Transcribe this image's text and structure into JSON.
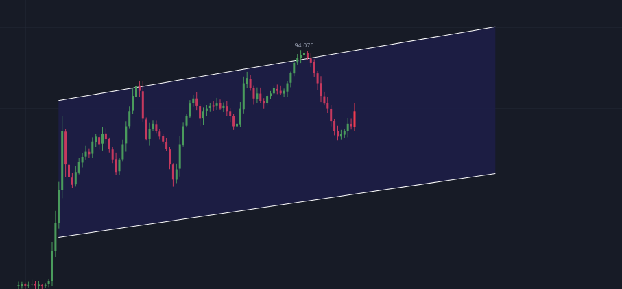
{
  "colors": {
    "background": "#171b26",
    "grid": "#232837",
    "channel_fill": "#1c1d45",
    "channel_line": "#ffffff",
    "up_candle": "#4a9b5c",
    "down_candle": "#c6395e",
    "last_candle": "#f03a4f",
    "label": "#9aa1b2"
  },
  "chart_data": {
    "type": "candlestick",
    "title": "",
    "xlabel": "",
    "ylabel": "",
    "peak_label": "94.076",
    "grid": true,
    "overlay": "parallel_channel",
    "bar_index_range": [
      0,
      129
    ],
    "y_range": [
      84.8,
      95.0
    ],
    "channel": {
      "upper": {
        "start": [
          12,
          92.12
        ],
        "end": [
          142,
          95.02
        ]
      },
      "lower": {
        "start": [
          12,
          86.73
        ],
        "end": [
          142,
          89.24
        ]
      }
    },
    "closes": [
      84.85,
      84.88,
      84.83,
      84.86,
      84.9,
      84.84,
      84.87,
      84.82,
      84.86,
      85.0,
      86.2,
      87.3,
      88.6,
      90.9,
      89.6,
      89.1,
      88.8,
      89.3,
      89.7,
      89.9,
      90.1,
      90.0,
      90.5,
      90.7,
      90.4,
      90.8,
      90.6,
      90.2,
      89.8,
      89.3,
      89.8,
      90.4,
      91.1,
      91.7,
      92.3,
      92.7,
      92.5,
      91.4,
      90.6,
      91.0,
      91.2,
      90.9,
      90.7,
      90.5,
      90.2,
      89.6,
      89.0,
      89.4,
      90.4,
      91.1,
      91.5,
      92.0,
      92.2,
      91.9,
      91.4,
      91.7,
      91.8,
      91.9,
      91.9,
      92.0,
      91.8,
      91.9,
      91.7,
      91.5,
      91.1,
      91.2,
      91.8,
      92.8,
      93.0,
      92.6,
      92.2,
      92.4,
      92.1,
      92.0,
      92.3,
      92.4,
      92.6,
      92.5,
      92.4,
      92.5,
      92.8,
      93.2,
      93.6,
      93.8,
      93.9,
      94.0,
      93.8,
      93.6,
      93.2,
      92.8,
      92.3,
      92.0,
      91.8,
      91.3,
      90.9,
      90.7,
      90.8,
      90.9,
      91.2,
      91.1,
      91.7
    ],
    "ohlc": []
  }
}
